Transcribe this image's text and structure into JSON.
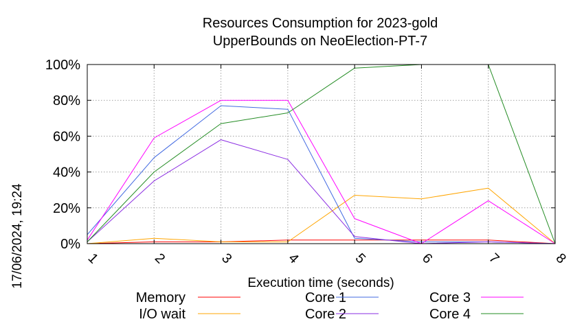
{
  "chart_data": {
    "type": "line",
    "title": "Resources Consumption for 2023-gold",
    "subtitle": "UpperBounds on NeoElection-PT-7",
    "xlabel": "Execution time (seconds)",
    "ylabel": "",
    "side_text": "17/06/2024, 19:24",
    "x": [
      1,
      2,
      3,
      4,
      5,
      6,
      7,
      8
    ],
    "xlim": [
      1,
      8
    ],
    "ylim": [
      0,
      100
    ],
    "y_unit": "%",
    "x_ticks": [
      "1",
      "2",
      "3",
      "4",
      "5",
      "6",
      "7",
      "8"
    ],
    "y_ticks": [
      "0%",
      "20%",
      "40%",
      "60%",
      "80%",
      "100%"
    ],
    "y_tick_values": [
      0,
      20,
      40,
      60,
      80,
      100
    ],
    "grid": true,
    "legend_position": "bottom",
    "series": [
      {
        "name": "Memory",
        "color": "#ff0000",
        "values": [
          0,
          1,
          1,
          2,
          2,
          2,
          2,
          0
        ]
      },
      {
        "name": "I/O wait",
        "color": "#ffa500",
        "values": [
          0,
          3,
          1,
          1,
          27,
          25,
          31,
          0
        ]
      },
      {
        "name": "Core 1",
        "color": "#4169e1",
        "values": [
          5,
          48,
          77,
          75,
          3,
          1,
          1,
          0
        ]
      },
      {
        "name": "Core 2",
        "color": "#8a2be2",
        "values": [
          1,
          35,
          58,
          47,
          4,
          0,
          1,
          0
        ]
      },
      {
        "name": "Core 3",
        "color": "#ff00ff",
        "values": [
          2,
          59,
          80,
          80,
          14,
          0,
          24,
          0
        ]
      },
      {
        "name": "Core 4",
        "color": "#228b22",
        "values": [
          1,
          40,
          67,
          73,
          98,
          100,
          100,
          0
        ]
      }
    ]
  }
}
